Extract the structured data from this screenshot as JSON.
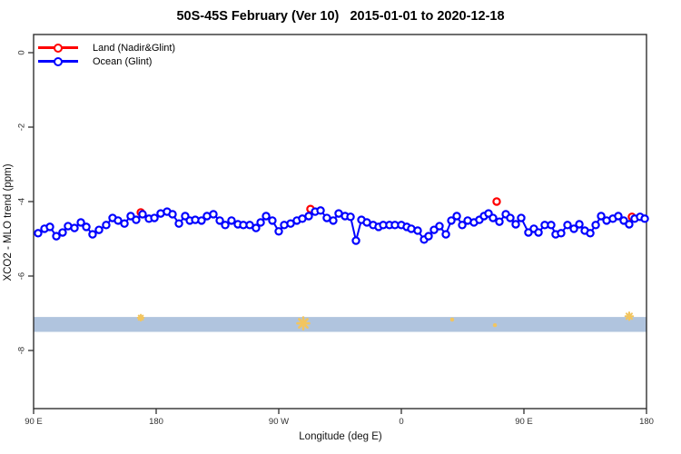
{
  "chart_data": {
    "type": "line",
    "title": "50S-45S February (Ver 10)   2015-01-01 to 2020-12-18",
    "xlabel": "Longitude (deg E)",
    "ylabel": "XCO2 - MLO trend (ppm)",
    "x_axis": {
      "range_deg": [
        90,
        540
      ],
      "ticks_deg": [
        90,
        180,
        270,
        360,
        450,
        540
      ],
      "tick_labels": [
        "90 E",
        "180",
        "90 W",
        "0",
        "90 E",
        "180"
      ]
    },
    "y_axis": {
      "range_ppm": [
        0.5,
        -9.6
      ],
      "ticks_ppm": [
        0,
        -2,
        -4,
        -6,
        -8
      ],
      "tick_labels": [
        "0",
        "-2",
        "-4",
        "-6",
        "-8"
      ]
    },
    "grid": "off",
    "band": {
      "ppm_top": -7.1,
      "ppm_bottom": -7.5,
      "color": "#b0c4de"
    },
    "legend": {
      "position": "top-left",
      "entries": [
        {
          "label": "Land (Nadir&Glint)",
          "color": "#ff0000"
        },
        {
          "label": "Ocean (Glint)",
          "color": "#0000ff"
        }
      ]
    },
    "series": [
      {
        "name": "Land (Nadir&Glint)",
        "color": "#ff0000",
        "style": "open-circles",
        "points": [
          [
            168.7,
            -4.29
          ],
          [
            293.3,
            -4.2
          ],
          [
            430,
            -4.0
          ],
          [
            529.3,
            -4.41
          ]
        ]
      },
      {
        "name": "Ocean (Glint)",
        "color": "#0000ff",
        "style": "line-open-circles",
        "points": [
          [
            93.3,
            -4.85
          ],
          [
            98,
            -4.73
          ],
          [
            102,
            -4.68
          ],
          [
            106.7,
            -4.93
          ],
          [
            111.3,
            -4.83
          ],
          [
            115.3,
            -4.66
          ],
          [
            120,
            -4.71
          ],
          [
            124.7,
            -4.56
          ],
          [
            128.7,
            -4.68
          ],
          [
            133.3,
            -4.88
          ],
          [
            138,
            -4.76
          ],
          [
            143.3,
            -4.63
          ],
          [
            148,
            -4.44
          ],
          [
            152,
            -4.51
          ],
          [
            156.7,
            -4.59
          ],
          [
            161.3,
            -4.39
          ],
          [
            165.3,
            -4.49
          ],
          [
            170,
            -4.34
          ],
          [
            174.7,
            -4.46
          ],
          [
            178.7,
            -4.44
          ],
          [
            183.3,
            -4.32
          ],
          [
            188,
            -4.27
          ],
          [
            192,
            -4.34
          ],
          [
            196.7,
            -4.59
          ],
          [
            201.3,
            -4.39
          ],
          [
            204.7,
            -4.51
          ],
          [
            208.7,
            -4.49
          ],
          [
            213.3,
            -4.51
          ],
          [
            217.3,
            -4.39
          ],
          [
            222,
            -4.34
          ],
          [
            226.7,
            -4.51
          ],
          [
            230.7,
            -4.63
          ],
          [
            235.3,
            -4.51
          ],
          [
            240,
            -4.61
          ],
          [
            244,
            -4.63
          ],
          [
            248.7,
            -4.63
          ],
          [
            253.3,
            -4.71
          ],
          [
            256.7,
            -4.56
          ],
          [
            260.7,
            -4.39
          ],
          [
            265.3,
            -4.51
          ],
          [
            270,
            -4.8
          ],
          [
            274,
            -4.63
          ],
          [
            278.7,
            -4.59
          ],
          [
            283.3,
            -4.51
          ],
          [
            287.3,
            -4.46
          ],
          [
            292,
            -4.39
          ],
          [
            296.7,
            -4.27
          ],
          [
            300.7,
            -4.24
          ],
          [
            305.3,
            -4.44
          ],
          [
            310,
            -4.51
          ],
          [
            314,
            -4.32
          ],
          [
            318.7,
            -4.39
          ],
          [
            322.7,
            -4.41
          ],
          [
            326.7,
            -5.05
          ],
          [
            330.7,
            -4.49
          ],
          [
            334.7,
            -4.56
          ],
          [
            339.3,
            -4.63
          ],
          [
            343.3,
            -4.68
          ],
          [
            346.7,
            -4.63
          ],
          [
            351.3,
            -4.63
          ],
          [
            355.3,
            -4.63
          ],
          [
            360,
            -4.63
          ],
          [
            364,
            -4.68
          ],
          [
            367.3,
            -4.73
          ],
          [
            372,
            -4.78
          ],
          [
            376.7,
            -5.02
          ],
          [
            380,
            -4.93
          ],
          [
            384,
            -4.76
          ],
          [
            388,
            -4.66
          ],
          [
            392.7,
            -4.88
          ],
          [
            396.7,
            -4.51
          ],
          [
            400.7,
            -4.39
          ],
          [
            404.7,
            -4.63
          ],
          [
            408.7,
            -4.51
          ],
          [
            413.3,
            -4.56
          ],
          [
            417.3,
            -4.49
          ],
          [
            420.7,
            -4.39
          ],
          [
            424,
            -4.32
          ],
          [
            427.3,
            -4.44
          ],
          [
            432,
            -4.54
          ],
          [
            436.7,
            -4.34
          ],
          [
            440,
            -4.44
          ],
          [
            444,
            -4.61
          ],
          [
            448,
            -4.44
          ],
          [
            453.3,
            -4.83
          ],
          [
            457.3,
            -4.73
          ],
          [
            460.7,
            -4.83
          ],
          [
            465.3,
            -4.63
          ],
          [
            470,
            -4.63
          ],
          [
            473.3,
            -4.88
          ],
          [
            477.3,
            -4.85
          ],
          [
            482,
            -4.63
          ],
          [
            486.7,
            -4.73
          ],
          [
            490.7,
            -4.61
          ],
          [
            494.7,
            -4.78
          ],
          [
            498.7,
            -4.85
          ],
          [
            502.7,
            -4.63
          ],
          [
            506.7,
            -4.39
          ],
          [
            510.7,
            -4.51
          ],
          [
            515.3,
            -4.46
          ],
          [
            519.3,
            -4.39
          ],
          [
            523.3,
            -4.51
          ],
          [
            527.3,
            -4.61
          ],
          [
            531.3,
            -4.46
          ],
          [
            535.3,
            -4.41
          ],
          [
            538.7,
            -4.46
          ]
        ]
      },
      {
        "name": "flagged-marks",
        "color": "#f2c55f",
        "style": "asterisk",
        "points": [
          {
            "deg": 168.7,
            "ppm": -7.12,
            "r": 3.2
          },
          {
            "deg": 288.0,
            "ppm": -7.27,
            "r": 6.5
          },
          {
            "deg": 397.3,
            "ppm": -7.17,
            "r": 1.4
          },
          {
            "deg": 428.7,
            "ppm": -7.32,
            "r": 1.4
          },
          {
            "deg": 527.3,
            "ppm": -7.08,
            "r": 4.2
          }
        ]
      }
    ]
  }
}
